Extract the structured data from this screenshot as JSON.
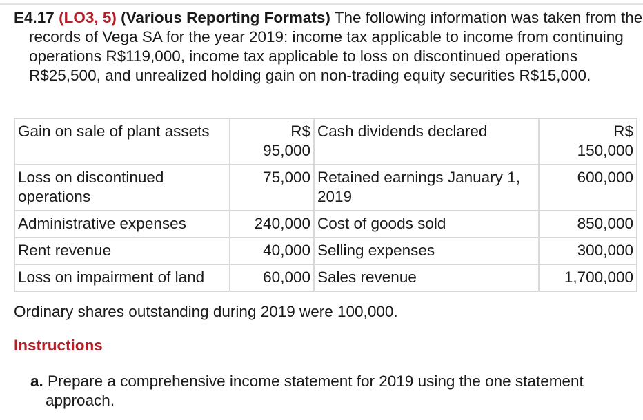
{
  "problem": {
    "number": "E4.17",
    "learning_objectives": "(LO3, 5)",
    "title": "(Various Reporting Formats)",
    "body": "The following information was taken from the records of Vega SA for the year 2019: income tax applicable to income from continuing operations R$119,000, income tax applicable to loss on discontinued operations R$25,500, and unrealized holding gain on non-trading equity securities R$15,000."
  },
  "table": {
    "rows": [
      {
        "left_label": "Gain on sale of plant assets",
        "left_amount": "R$ 95,000",
        "right_label": "Cash dividends declared",
        "right_amount": "R$ 150,000"
      },
      {
        "left_label": "Loss on discontinued operations",
        "left_amount": "75,000",
        "right_label": "Retained earnings January 1, 2019",
        "right_amount": "600,000"
      },
      {
        "left_label": "Administrative expenses",
        "left_amount": "240,000",
        "right_label": "Cost of goods sold",
        "right_amount": "850,000"
      },
      {
        "left_label": "Rent revenue",
        "left_amount": "40,000",
        "right_label": "Selling expenses",
        "right_amount": "300,000"
      },
      {
        "left_label": "Loss on impairment of land",
        "left_amount": "60,000",
        "right_label": "Sales revenue",
        "right_amount": "1,700,000"
      }
    ]
  },
  "shares_note": "Ordinary shares outstanding during 2019 were 100,000.",
  "instructions": {
    "heading": "Instructions",
    "items": [
      {
        "letter": "a.",
        "text": "Prepare a comprehensive income statement for 2019 using the one statement approach."
      }
    ]
  },
  "colors": {
    "accent_red": "#b3202a",
    "text": "#1a1a1a",
    "table_border": "#d8d8d8"
  }
}
